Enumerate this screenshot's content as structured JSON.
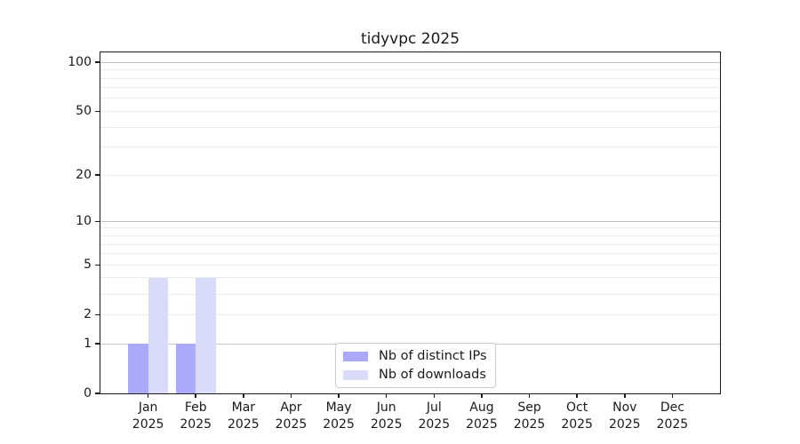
{
  "chart_data": {
    "type": "bar",
    "title": "tidyvpc 2025",
    "categories": [
      "Jan",
      "Feb",
      "Mar",
      "Apr",
      "May",
      "Jun",
      "Jul",
      "Aug",
      "Sep",
      "Oct",
      "Nov",
      "Dec"
    ],
    "x_tick_year": "2025",
    "series": [
      {
        "name": "Nb of distinct IPs",
        "color": "#aaaaf8",
        "values": [
          1,
          1,
          0,
          0,
          0,
          0,
          0,
          0,
          0,
          0,
          0,
          0
        ]
      },
      {
        "name": "Nb of downloads",
        "color": "#dadafb",
        "values": [
          4,
          4,
          0,
          0,
          0,
          0,
          0,
          0,
          0,
          0,
          0,
          0
        ]
      }
    ],
    "xlabel": "",
    "ylabel": "",
    "y_scale": "log10(value+1)",
    "ylim": [
      0,
      115
    ],
    "y_ticks": [
      0,
      1,
      2,
      5,
      10,
      20,
      50,
      100
    ],
    "major_gridlines": [
      1,
      10,
      100
    ],
    "minor_gridlines": [
      2,
      3,
      4,
      5,
      6,
      7,
      8,
      9,
      20,
      30,
      40,
      50,
      60,
      70,
      80,
      90
    ],
    "grid": "horizontal",
    "legend_position": "lower center"
  },
  "colors": {
    "grid_minor": "#ececec",
    "grid_major": "#c6c6c6",
    "spine": "#1a1a1a",
    "text": "#1a1a1a",
    "legend_border": "#cccccc",
    "background": "#ffffff"
  }
}
